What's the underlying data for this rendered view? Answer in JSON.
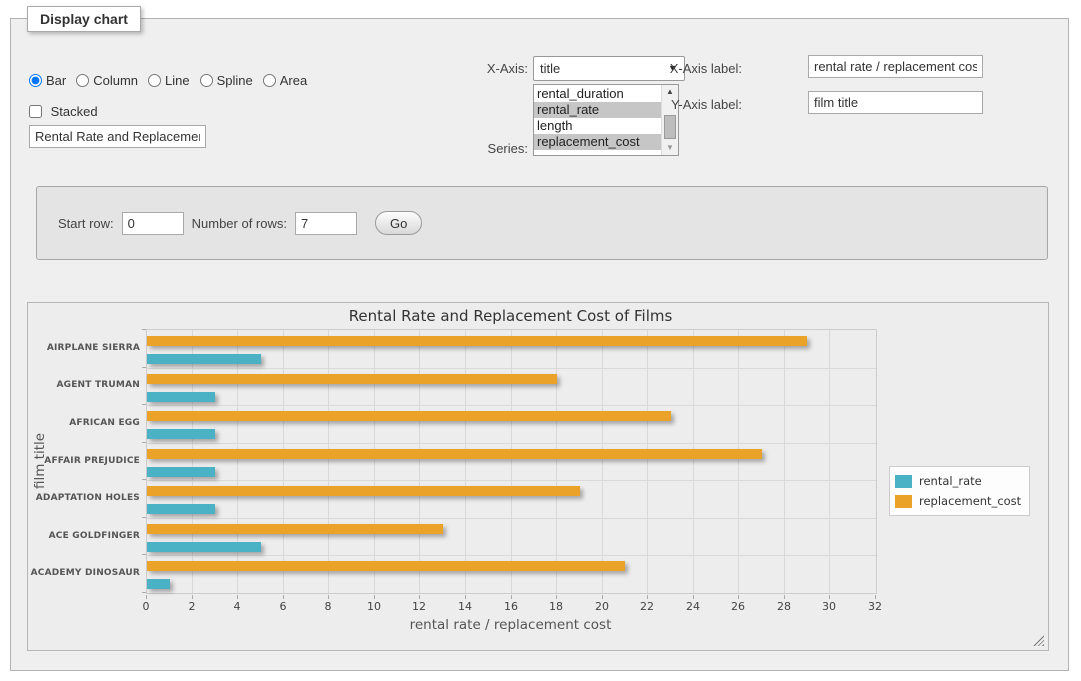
{
  "panel": {
    "legend": "Display chart"
  },
  "chart_types": {
    "options": [
      {
        "label": "Bar",
        "selected": true
      },
      {
        "label": "Column",
        "selected": false
      },
      {
        "label": "Line",
        "selected": false
      },
      {
        "label": "Spline",
        "selected": false
      },
      {
        "label": "Area",
        "selected": false
      }
    ]
  },
  "stacked": {
    "label": "Stacked",
    "checked": false
  },
  "title_input": {
    "value": "Rental Rate and Replacemen"
  },
  "xaxis": {
    "label": "X-Axis:",
    "value": "title"
  },
  "series": {
    "label": "Series:",
    "options": [
      {
        "label": "rental_duration",
        "selected": false
      },
      {
        "label": "rental_rate",
        "selected": true
      },
      {
        "label": "length",
        "selected": false
      },
      {
        "label": "replacement_cost",
        "selected": true
      }
    ]
  },
  "xaxis_label": {
    "label": "X-Axis label:",
    "value": "rental rate / replacement cost"
  },
  "yaxis_label": {
    "label": "Y-Axis label:",
    "value": "film title"
  },
  "rows_form": {
    "start_row_label": "Start row:",
    "start_row_value": "0",
    "num_rows_label": "Number of rows:",
    "num_rows_value": "7",
    "go_label": "Go"
  },
  "chart_data": {
    "type": "bar",
    "orientation": "horizontal",
    "title": "Rental Rate and Replacement Cost of Films",
    "categories": [
      "AIRPLANE SIERRA",
      "AGENT TRUMAN",
      "AFRICAN EGG",
      "AFFAIR PREJUDICE",
      "ADAPTATION HOLES",
      "ACE GOLDFINGER",
      "ACADEMY DINOSAUR"
    ],
    "series": [
      {
        "name": "rental_rate",
        "color": "#4bb2c5",
        "values": [
          4.99,
          2.99,
          2.99,
          2.99,
          2.99,
          4.99,
          0.99
        ]
      },
      {
        "name": "replacement_cost",
        "color": "#eaa228",
        "values": [
          28.99,
          17.99,
          22.99,
          26.99,
          18.99,
          12.99,
          20.99
        ]
      }
    ],
    "xlabel": "rental rate / replacement cost",
    "ylabel": "film title",
    "xlim": [
      0,
      32
    ],
    "xticks": [
      0,
      2,
      4,
      6,
      8,
      10,
      12,
      14,
      16,
      18,
      20,
      22,
      24,
      26,
      28,
      30,
      32
    ],
    "grid": true,
    "legend_position": "right"
  }
}
